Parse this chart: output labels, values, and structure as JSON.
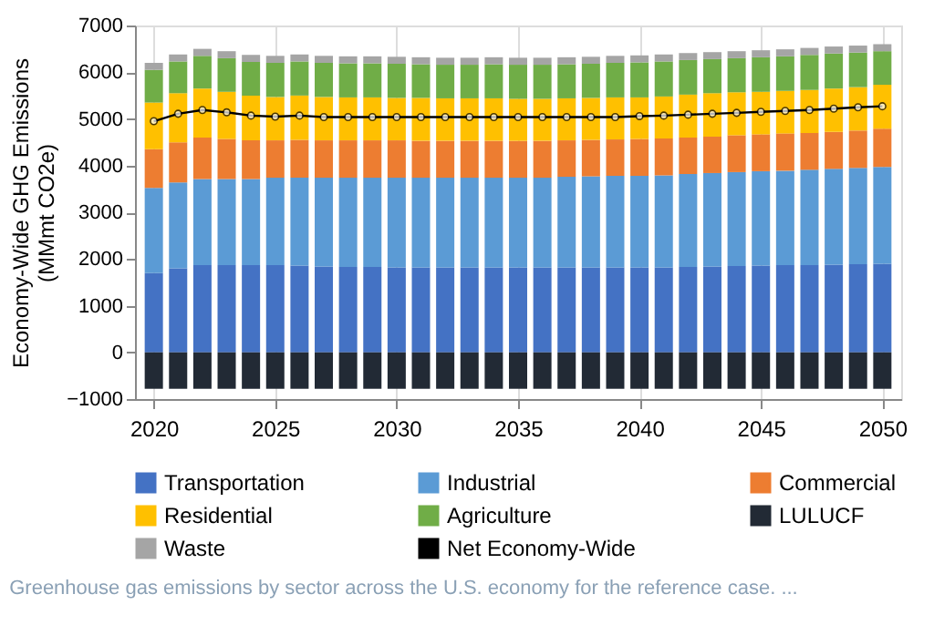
{
  "chart_data": {
    "type": "bar",
    "stacked": true,
    "ylabel": "Economy-Wide GHG Emissions\n(MMmt CO2e)",
    "x": [
      2020,
      2021,
      2022,
      2023,
      2024,
      2025,
      2026,
      2027,
      2028,
      2029,
      2030,
      2031,
      2032,
      2033,
      2034,
      2035,
      2036,
      2037,
      2038,
      2039,
      2040,
      2041,
      2042,
      2043,
      2044,
      2045,
      2046,
      2047,
      2048,
      2049,
      2050
    ],
    "series": [
      {
        "name": "Transportation",
        "color": "#4472c4",
        "values": [
          1700,
          1800,
          1870,
          1870,
          1870,
          1870,
          1860,
          1840,
          1830,
          1830,
          1820,
          1820,
          1820,
          1820,
          1820,
          1820,
          1820,
          1820,
          1820,
          1820,
          1820,
          1820,
          1830,
          1840,
          1850,
          1860,
          1870,
          1870,
          1880,
          1890,
          1900
        ]
      },
      {
        "name": "Industrial",
        "color": "#5b9bd5",
        "values": [
          1820,
          1840,
          1840,
          1840,
          1840,
          1870,
          1880,
          1900,
          1910,
          1910,
          1920,
          1920,
          1920,
          1920,
          1920,
          1920,
          1920,
          1940,
          1950,
          1960,
          1960,
          1970,
          1990,
          2000,
          2010,
          2020,
          2020,
          2040,
          2050,
          2060,
          2070
        ]
      },
      {
        "name": "Commercial",
        "color": "#ed7d31",
        "values": [
          830,
          860,
          890,
          860,
          830,
          800,
          810,
          800,
          800,
          800,
          800,
          790,
          790,
          790,
          790,
          790,
          790,
          780,
          780,
          780,
          790,
          790,
          780,
          780,
          790,
          790,
          800,
          790,
          790,
          800,
          820
        ]
      },
      {
        "name": "Residential",
        "color": "#ffc000",
        "values": [
          1000,
          1050,
          1050,
          1010,
          960,
          930,
          950,
          930,
          920,
          920,
          910,
          920,
          910,
          910,
          910,
          900,
          900,
          900,
          900,
          900,
          890,
          900,
          920,
          930,
          920,
          910,
          910,
          920,
          930,
          930,
          940
        ]
      },
      {
        "name": "Agriculture",
        "color": "#70ad47",
        "values": [
          700,
          680,
          700,
          720,
          720,
          730,
          730,
          730,
          730,
          730,
          730,
          720,
          720,
          720,
          730,
          730,
          730,
          730,
          730,
          740,
          750,
          750,
          740,
          730,
          730,
          740,
          740,
          750,
          750,
          740,
          720
        ]
      },
      {
        "name": "LULUCF",
        "color": "#222a35",
        "values": [
          -780,
          -780,
          -780,
          -780,
          -780,
          -780,
          -780,
          -780,
          -780,
          -780,
          -780,
          -780,
          -780,
          -780,
          -780,
          -780,
          -780,
          -780,
          -780,
          -780,
          -780,
          -780,
          -780,
          -780,
          -780,
          -780,
          -780,
          -780,
          -780,
          -780,
          -780
        ]
      },
      {
        "name": "Waste",
        "color": "#a5a5a5",
        "values": [
          150,
          150,
          150,
          150,
          150,
          150,
          150,
          150,
          150,
          150,
          150,
          150,
          150,
          150,
          150,
          150,
          150,
          150,
          150,
          150,
          150,
          150,
          150,
          150,
          150,
          150,
          150,
          150,
          150,
          150,
          150
        ]
      },
      {
        "name": "Net Economy-Wide",
        "type": "line",
        "color": "#000000",
        "marker": "circle",
        "values": [
          4950,
          5110,
          5190,
          5140,
          5070,
          5050,
          5070,
          5040,
          5040,
          5040,
          5040,
          5040,
          5040,
          5040,
          5040,
          5040,
          5040,
          5040,
          5040,
          5040,
          5060,
          5070,
          5090,
          5110,
          5130,
          5150,
          5170,
          5190,
          5220,
          5250,
          5270
        ]
      }
    ],
    "xlim": [
      2019.6,
      2050.4
    ],
    "xticks": [
      2020,
      2025,
      2030,
      2035,
      2040,
      2045,
      2050
    ],
    "ylim": [
      -1000,
      7000
    ],
    "yticks": [
      -1000,
      0,
      1000,
      2000,
      3000,
      4000,
      5000,
      6000,
      7000
    ],
    "grid": "x",
    "legend": "bottom",
    "annotations": [
      "Greenhouse gas emissions by sector across the U.S. economy for the reference case. ..."
    ]
  }
}
